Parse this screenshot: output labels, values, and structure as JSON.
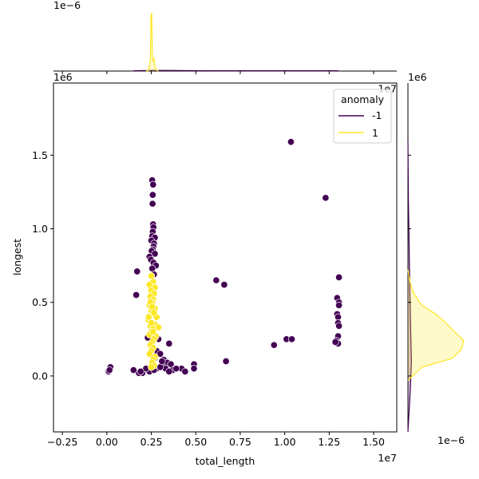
{
  "chart_data": {
    "type": "scatter",
    "title": "",
    "xlabel": "total_length",
    "ylabel": "longest",
    "x_offset_label": "1e7",
    "y_offset_label": "1e6",
    "top_marginal_offset_label": "1e−6",
    "right_marginal_offset_label": "1e−6",
    "xlim": [
      -3000000,
      16300000
    ],
    "ylim": [
      -380000,
      1990000
    ],
    "x_ticks": [
      {
        "value": -2500000,
        "label": "−0.25"
      },
      {
        "value": 0,
        "label": "0.00"
      },
      {
        "value": 2500000,
        "label": "0.25"
      },
      {
        "value": 5000000,
        "label": "0.50"
      },
      {
        "value": 7500000,
        "label": "0.75"
      },
      {
        "value": 10000000,
        "label": "1.00"
      },
      {
        "value": 12500000,
        "label": "1.25"
      },
      {
        "value": 15000000,
        "label": "1.50"
      }
    ],
    "y_ticks": [
      {
        "value": 0,
        "label": "0.0"
      },
      {
        "value": 500000,
        "label": "0.5"
      },
      {
        "value": 1000000,
        "label": "1.0"
      },
      {
        "value": 1500000,
        "label": "1.5"
      }
    ],
    "legend": {
      "title": "anomaly",
      "placement": "top-right",
      "entries": [
        {
          "label": "-1",
          "color": "#440154"
        },
        {
          "label": "1",
          "color": "#fde725"
        }
      ]
    },
    "colors": {
      "-1": "#440154",
      "1": "#fde725"
    },
    "series": [
      {
        "label": "-1",
        "points": [
          [
            10350000,
            1590000
          ],
          [
            2550000,
            1330000
          ],
          [
            2600000,
            1300000
          ],
          [
            2580000,
            1230000
          ],
          [
            2570000,
            1170000
          ],
          [
            12300000,
            1210000
          ],
          [
            2600000,
            1030000
          ],
          [
            2620000,
            1010000
          ],
          [
            2580000,
            980000
          ],
          [
            2550000,
            950000
          ],
          [
            2700000,
            940000
          ],
          [
            2500000,
            920000
          ],
          [
            2650000,
            900000
          ],
          [
            2620000,
            880000
          ],
          [
            2580000,
            860000
          ],
          [
            2520000,
            850000
          ],
          [
            2700000,
            830000
          ],
          [
            2400000,
            810000
          ],
          [
            2480000,
            790000
          ],
          [
            2620000,
            770000
          ],
          [
            2760000,
            750000
          ],
          [
            2550000,
            730000
          ],
          [
            1700000,
            710000
          ],
          [
            2650000,
            690000
          ],
          [
            6150000,
            650000
          ],
          [
            6600000,
            620000
          ],
          [
            13050000,
            670000
          ],
          [
            1650000,
            550000
          ],
          [
            12950000,
            530000
          ],
          [
            13050000,
            500000
          ],
          [
            13050000,
            480000
          ],
          [
            12950000,
            420000
          ],
          [
            13000000,
            400000
          ],
          [
            13000000,
            360000
          ],
          [
            13050000,
            340000
          ],
          [
            13000000,
            270000
          ],
          [
            12900000,
            240000
          ],
          [
            13000000,
            220000
          ],
          [
            12850000,
            230000
          ],
          [
            10100000,
            250000
          ],
          [
            10400000,
            250000
          ],
          [
            9400000,
            210000
          ],
          [
            3500000,
            220000
          ],
          [
            2300000,
            260000
          ],
          [
            2900000,
            250000
          ],
          [
            2800000,
            170000
          ],
          [
            3000000,
            150000
          ],
          [
            2600000,
            120000
          ],
          [
            3200000,
            110000
          ],
          [
            3400000,
            90000
          ],
          [
            6700000,
            100000
          ],
          [
            3100000,
            70000
          ],
          [
            3600000,
            80000
          ],
          [
            4900000,
            80000
          ],
          [
            4200000,
            50000
          ],
          [
            4900000,
            50000
          ],
          [
            4400000,
            30000
          ],
          [
            3700000,
            40000
          ],
          [
            3300000,
            50000
          ],
          [
            2800000,
            50000
          ],
          [
            2400000,
            30000
          ],
          [
            2000000,
            20000
          ],
          [
            1800000,
            20000
          ],
          [
            1500000,
            40000
          ],
          [
            3000000,
            60000
          ],
          [
            3900000,
            50000
          ],
          [
            200000,
            60000
          ],
          [
            100000,
            30000
          ],
          [
            150000,
            40000
          ],
          [
            2650000,
            40000
          ],
          [
            2200000,
            50000
          ],
          [
            1900000,
            30000
          ],
          [
            3500000,
            30000
          ],
          [
            2700000,
            120000
          ],
          [
            3100000,
            100000
          ]
        ]
      },
      {
        "label": "1",
        "points": [
          [
            2500000,
            680000
          ],
          [
            2600000,
            640000
          ],
          [
            2400000,
            620000
          ],
          [
            2700000,
            600000
          ],
          [
            2500000,
            580000
          ],
          [
            2650000,
            560000
          ],
          [
            2450000,
            540000
          ],
          [
            2600000,
            520000
          ],
          [
            2550000,
            500000
          ],
          [
            2400000,
            480000
          ],
          [
            2700000,
            460000
          ],
          [
            2500000,
            440000
          ],
          [
            2600000,
            420000
          ],
          [
            2800000,
            400000
          ],
          [
            2350000,
            380000
          ],
          [
            2550000,
            360000
          ],
          [
            2700000,
            350000
          ],
          [
            2450000,
            340000
          ],
          [
            2900000,
            330000
          ],
          [
            2600000,
            320000
          ],
          [
            2500000,
            300000
          ],
          [
            2400000,
            280000
          ],
          [
            2750000,
            270000
          ],
          [
            2650000,
            250000
          ],
          [
            2550000,
            230000
          ],
          [
            2450000,
            210000
          ],
          [
            2600000,
            190000
          ],
          [
            2500000,
            170000
          ],
          [
            2400000,
            150000
          ],
          [
            2700000,
            130000
          ],
          [
            2600000,
            110000
          ],
          [
            2550000,
            90000
          ],
          [
            2650000,
            70000
          ],
          [
            2500000,
            60000
          ],
          [
            2450000,
            500000
          ],
          [
            2550000,
            470000
          ],
          [
            2650000,
            430000
          ],
          [
            2350000,
            400000
          ],
          [
            2500000,
            360000
          ],
          [
            2600000,
            300000
          ]
        ]
      }
    ],
    "marginal_x": {
      "series": [
        {
          "label": "1",
          "x": [
            2200000,
            2350000,
            2450000,
            2480000,
            2520000,
            2560000,
            2600000,
            2650000,
            2700000,
            2750000,
            2900000
          ],
          "density": [
            0.0,
            0.02,
            0.4,
            1.8,
            1.95,
            0.5,
            0.35,
            0.42,
            0.15,
            0.05,
            0.0
          ]
        },
        {
          "label": "-1",
          "x": [
            1500000,
            2500000,
            3500000,
            6000000,
            10000000,
            13000000
          ],
          "density": [
            0.01,
            0.02,
            0.02,
            0.01,
            0.01,
            0.01
          ]
        }
      ]
    },
    "marginal_y": {
      "series": [
        {
          "label": "1",
          "y": [
            -30000,
            0,
            60000,
            120000,
            180000,
            240000,
            300000,
            350000,
            420000,
            480000,
            560000,
            620000,
            680000,
            720000
          ],
          "density": [
            0.0,
            0.2,
            0.6,
            1.9,
            2.3,
            2.4,
            2.0,
            1.7,
            1.2,
            0.6,
            0.25,
            0.12,
            0.04,
            0.0
          ]
        },
        {
          "label": "-1",
          "y": [
            -380000,
            -100000,
            100000,
            300000,
            600000,
            900000,
            1200000,
            1600000
          ],
          "density": [
            0.0,
            0.1,
            0.15,
            0.12,
            0.08,
            0.05,
            0.02,
            0.0
          ]
        }
      ]
    }
  }
}
